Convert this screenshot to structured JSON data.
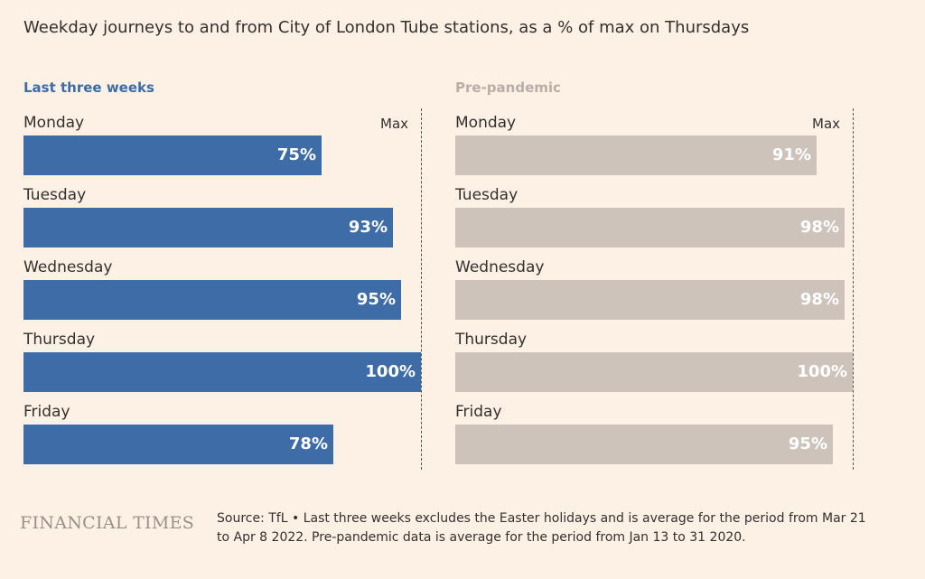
{
  "title": "Weekday journeys to and from City of London Tube stations, as a % of max on Thursdays",
  "max_label": "Max",
  "colors": {
    "background": "#fdf1e6",
    "recent": "#3e6ca6",
    "prepandemic": "#cdc3bb",
    "prepandemic_title": "#b7aea7"
  },
  "chart_data": [
    {
      "type": "bar",
      "orientation": "horizontal",
      "title": "Last three weeks",
      "categories": [
        "Monday",
        "Tuesday",
        "Wednesday",
        "Thursday",
        "Friday"
      ],
      "values": [
        75,
        93,
        95,
        100,
        78
      ],
      "value_labels": [
        "75%",
        "93%",
        "95%",
        "100%",
        "78%"
      ],
      "xlim": [
        0,
        100
      ],
      "color": "#3e6ca6"
    },
    {
      "type": "bar",
      "orientation": "horizontal",
      "title": "Pre-pandemic",
      "categories": [
        "Monday",
        "Tuesday",
        "Wednesday",
        "Thursday",
        "Friday"
      ],
      "values": [
        91,
        98,
        98,
        100,
        95
      ],
      "value_labels": [
        "91%",
        "98%",
        "98%",
        "100%",
        "95%"
      ],
      "xlim": [
        0,
        100
      ],
      "color": "#cdc3bb"
    }
  ],
  "footer": {
    "brand": "FINANCIAL TIMES",
    "source": "Source: TfL • Last three weeks excludes the Easter holidays and is average for the period from Mar 21 to Apr 8 2022. Pre-pandemic data is average for the period from Jan 13 to 31 2020."
  }
}
